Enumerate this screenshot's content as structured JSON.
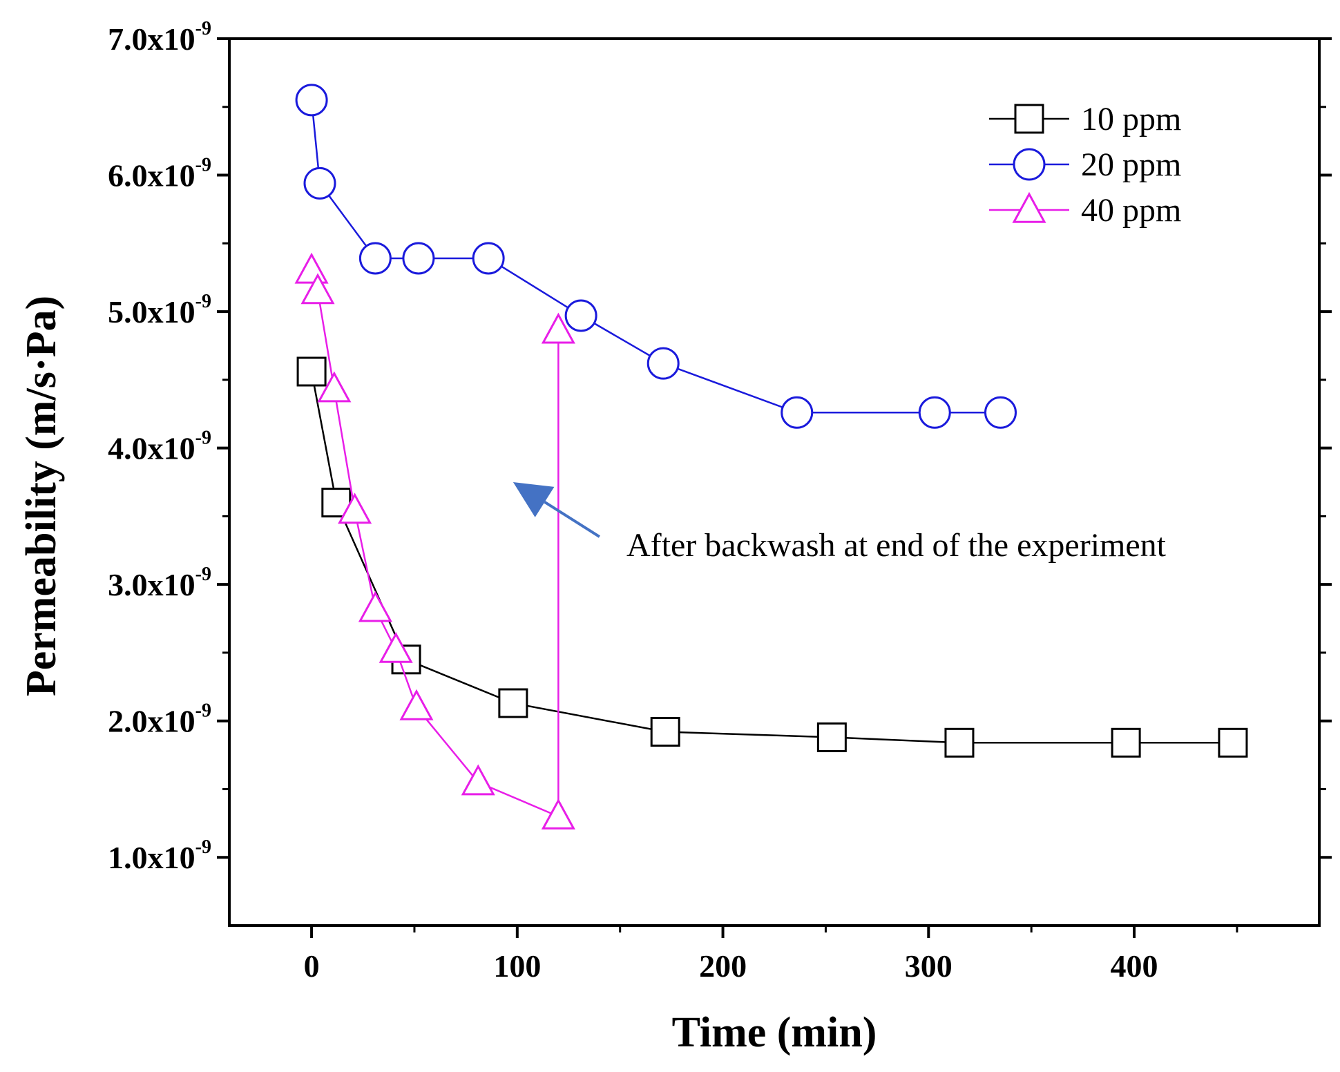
{
  "chart_data": {
    "type": "line",
    "xlabel": "Time (min)",
    "ylabel": "Permeability (m/s·Pa)",
    "xlim": [
      -40,
      490
    ],
    "ylim": [
      0.5,
      7.0
    ],
    "xticks": [
      0,
      100,
      200,
      300,
      400
    ],
    "yticks": [
      {
        "value": 1.0,
        "mantissa": "1.0x10",
        "exponent": "-9"
      },
      {
        "value": 2.0,
        "mantissa": "2.0x10",
        "exponent": "-9"
      },
      {
        "value": 3.0,
        "mantissa": "3.0x10",
        "exponent": "-9"
      },
      {
        "value": 4.0,
        "mantissa": "4.0x10",
        "exponent": "-9"
      },
      {
        "value": 5.0,
        "mantissa": "5.0x10",
        "exponent": "-9"
      },
      {
        "value": 6.0,
        "mantissa": "6.0x10",
        "exponent": "-9"
      },
      {
        "value": 7.0,
        "mantissa": "7.0x10",
        "exponent": "-9"
      }
    ],
    "y_unit_note": "values in units of 1e-9 m/s·Pa",
    "legend_position": "top-right",
    "series": [
      {
        "name": "10 ppm",
        "marker": "square",
        "color": "#000000",
        "x": [
          0,
          12,
          46,
          98,
          172,
          253,
          315,
          396,
          448
        ],
        "y": [
          4.56,
          3.6,
          2.45,
          2.13,
          1.92,
          1.88,
          1.84,
          1.84,
          1.84
        ]
      },
      {
        "name": "20 ppm",
        "marker": "circle",
        "color": "#1a1adc",
        "x": [
          0,
          4,
          31,
          52,
          86,
          131,
          171,
          236,
          303,
          335
        ],
        "y": [
          6.55,
          5.94,
          5.39,
          5.39,
          5.39,
          4.97,
          4.62,
          4.26,
          4.26,
          4.26
        ]
      },
      {
        "name": "40 ppm",
        "marker": "triangle",
        "color": "#e81ee8",
        "x": [
          0,
          3,
          11,
          21,
          31,
          41,
          51,
          81,
          120,
          120
        ],
        "y": [
          5.3,
          5.15,
          4.43,
          3.54,
          2.82,
          2.52,
          2.1,
          1.55,
          1.3,
          4.86
        ]
      }
    ],
    "annotation": {
      "text": "After backwash at end of the experiment",
      "arrow_color": "#4472c4",
      "points_to": {
        "x": 98,
        "y": 3.75
      },
      "from": {
        "x": 140,
        "y": 3.35
      }
    }
  }
}
